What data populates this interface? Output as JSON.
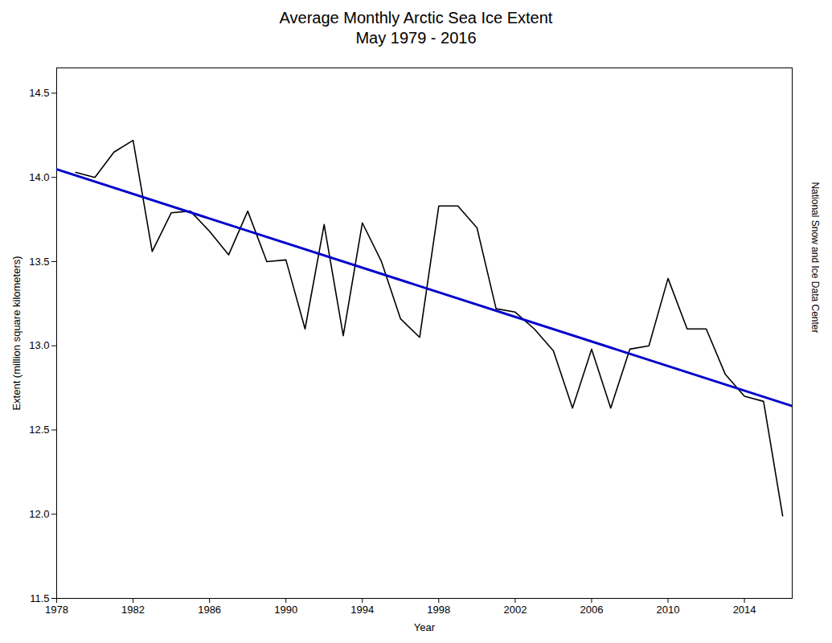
{
  "chart_data": {
    "type": "line",
    "title": "Average Monthly Arctic Sea Ice Extent\nMay 1979 - 2016",
    "xlabel": "Year",
    "ylabel": "Extent (million square kilometers)",
    "annotation": "National Snow and Ice Data Center",
    "series": [
      {
        "color": "#000000",
        "x": [
          1979,
          1980,
          1981,
          1982,
          1983,
          1984,
          1985,
          1986,
          1987,
          1988,
          1989,
          1990,
          1991,
          1992,
          1993,
          1994,
          1995,
          1996,
          1997,
          1998,
          1999,
          2000,
          2001,
          2002,
          2003,
          2004,
          2005,
          2006,
          2007,
          2008,
          2009,
          2010,
          2011,
          2012,
          2013,
          2014,
          2015,
          2016
        ],
        "values": [
          14.03,
          14.0,
          14.15,
          14.22,
          13.56,
          13.79,
          13.8,
          13.68,
          13.54,
          13.8,
          13.5,
          13.51,
          13.1,
          13.72,
          13.06,
          13.73,
          13.5,
          13.16,
          13.05,
          13.83,
          13.83,
          13.7,
          13.22,
          13.2,
          13.1,
          12.97,
          12.63,
          12.98,
          12.63,
          12.98,
          13.0,
          13.4,
          13.1,
          13.1,
          12.83,
          12.7,
          12.67,
          11.99
        ]
      },
      {
        "color": "#0000cc",
        "x": [
          1978,
          2016.5
        ],
        "values": [
          14.0477,
          12.6422
        ]
      }
    ],
    "xlim": [
      1978,
      2016.5
    ],
    "ylim": [
      11.5,
      14.65
    ],
    "xticks": [
      1978,
      1982,
      1986,
      1990,
      1994,
      1998,
      2002,
      2006,
      2010,
      2014
    ],
    "yticks": [
      11.5,
      {
        "value": 12.0,
        "label": "12.0"
      },
      12.5,
      {
        "value": 13.0,
        "label": "13.0"
      },
      13.5,
      {
        "value": 14.0,
        "label": "14.0"
      },
      14.5
    ]
  }
}
